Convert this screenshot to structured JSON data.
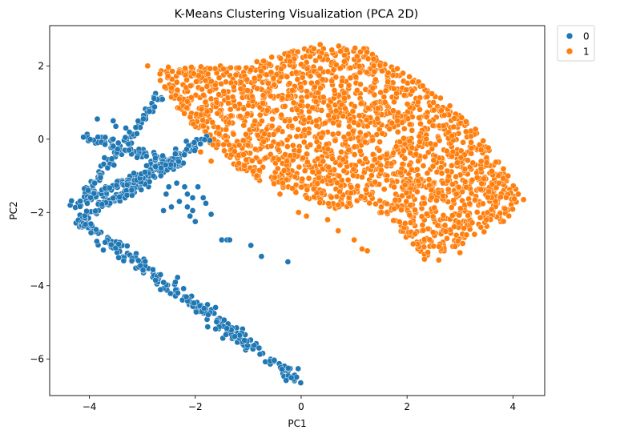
{
  "chart_data": {
    "type": "scatter",
    "title": "K-Means Clustering Visualization (PCA 2D)",
    "xlabel": "PC1",
    "ylabel": "PC2",
    "xlim": [
      -4.75,
      4.6
    ],
    "ylim": [
      -7.0,
      3.1
    ],
    "xticks": [
      -4,
      -2,
      0,
      2,
      4
    ],
    "yticks": [
      -6,
      -4,
      -2,
      0,
      2
    ],
    "xtick_labels": [
      "−4",
      "−2",
      "0",
      "2",
      "4"
    ],
    "ytick_labels": [
      "−6",
      "−4",
      "−2",
      "0",
      "2"
    ],
    "grid": false,
    "legend_position": "outside-top-right",
    "series": [
      {
        "name": "0",
        "color": "#1f77b4",
        "segments": [
          {
            "from": [
              -4.35,
              -2.05
            ],
            "to": [
              -2.65,
              1.2
            ],
            "count": 90,
            "spread": 0.07
          },
          {
            "from": [
              -4.2,
              -2.2
            ],
            "to": [
              -0.05,
              -6.6
            ],
            "count": 240,
            "spread": 0.08
          },
          {
            "from": [
              -4.15,
              0.1
            ],
            "to": [
              -2.3,
              -0.7
            ],
            "count": 60,
            "spread": 0.06
          },
          {
            "from": [
              -4.1,
              -2.1
            ],
            "to": [
              -1.8,
              0.0
            ],
            "count": 110,
            "spread": 0.07
          },
          {
            "from": [
              -3.95,
              -2.0
            ],
            "to": [
              -2.9,
              -1.2
            ],
            "count": 25,
            "spread": 0.06
          },
          {
            "from": [
              -4.1,
              -1.7
            ],
            "to": [
              -2.2,
              -0.4
            ],
            "count": 60,
            "spread": 0.06
          },
          {
            "from": [
              -3.7,
              -1.4
            ],
            "to": [
              -2.2,
              -0.6
            ],
            "count": 45,
            "spread": 0.06
          }
        ],
        "points": [
          [
            -3.85,
            0.55
          ],
          [
            -3.55,
            0.5
          ],
          [
            -3.5,
            0.35
          ],
          [
            -3.7,
            0.05
          ],
          [
            -3.55,
            0.0
          ],
          [
            -2.65,
            -1.0
          ],
          [
            -2.5,
            -1.3
          ],
          [
            -2.55,
            -1.5
          ],
          [
            -2.35,
            -1.2
          ],
          [
            -2.2,
            -1.3
          ],
          [
            -2.15,
            -1.5
          ],
          [
            -2.05,
            -1.6
          ],
          [
            -1.95,
            -1.3
          ],
          [
            -1.85,
            -1.6
          ],
          [
            -1.8,
            -1.75
          ],
          [
            -2.05,
            -1.95
          ],
          [
            -2.1,
            -2.1
          ],
          [
            -2.15,
            -1.85
          ],
          [
            -2.3,
            -1.7
          ],
          [
            -2.45,
            -1.85
          ],
          [
            -2.6,
            -1.95
          ],
          [
            -2.0,
            -2.25
          ],
          [
            -1.7,
            -2.05
          ],
          [
            -1.5,
            -2.75
          ],
          [
            -1.4,
            -2.75
          ],
          [
            -1.35,
            -2.75
          ],
          [
            -0.95,
            -2.9
          ],
          [
            -0.75,
            -3.2
          ],
          [
            -0.25,
            -3.35
          ],
          [
            -3.25,
            -0.3
          ],
          [
            -3.1,
            -0.5
          ],
          [
            -2.95,
            -0.9
          ],
          [
            -2.75,
            -0.75
          ],
          [
            -3.9,
            -1.2
          ]
        ]
      },
      {
        "name": "1",
        "color": "#ff7f0e",
        "polygon": [
          [
            -2.7,
            2.0
          ],
          [
            -1.2,
            2.0
          ],
          [
            0.3,
            2.6
          ],
          [
            1.2,
            2.5
          ],
          [
            2.2,
            1.6
          ],
          [
            3.2,
            0.5
          ],
          [
            4.15,
            -1.5
          ],
          [
            3.9,
            -2.2
          ],
          [
            3.0,
            -2.9
          ],
          [
            2.6,
            -3.1
          ],
          [
            2.3,
            -3.3
          ],
          [
            1.8,
            -2.4
          ],
          [
            1.3,
            -1.8
          ],
          [
            0.6,
            -1.9
          ],
          [
            -0.1,
            -1.5
          ],
          [
            -0.6,
            -1.3
          ],
          [
            -1.2,
            -0.8
          ],
          [
            -1.8,
            0.0
          ],
          [
            -2.4,
            0.9
          ],
          [
            -2.7,
            1.7
          ]
        ],
        "count": 2000,
        "points": [
          [
            -2.9,
            2.0
          ],
          [
            -0.4,
            -1.5
          ],
          [
            -0.05,
            -2.0
          ],
          [
            0.1,
            -2.1
          ],
          [
            0.5,
            -2.2
          ],
          [
            0.7,
            -2.5
          ],
          [
            1.0,
            -2.75
          ],
          [
            1.15,
            -3.0
          ],
          [
            1.25,
            -3.05
          ],
          [
            2.6,
            -3.3
          ],
          [
            3.0,
            -3.1
          ],
          [
            3.5,
            -2.2
          ],
          [
            3.85,
            -1.9
          ],
          [
            4.1,
            -1.5
          ],
          [
            4.2,
            -1.65
          ],
          [
            -2.3,
            1.1
          ],
          [
            -2.45,
            1.4
          ],
          [
            -1.9,
            -0.35
          ],
          [
            -1.7,
            -0.6
          ]
        ]
      }
    ]
  }
}
